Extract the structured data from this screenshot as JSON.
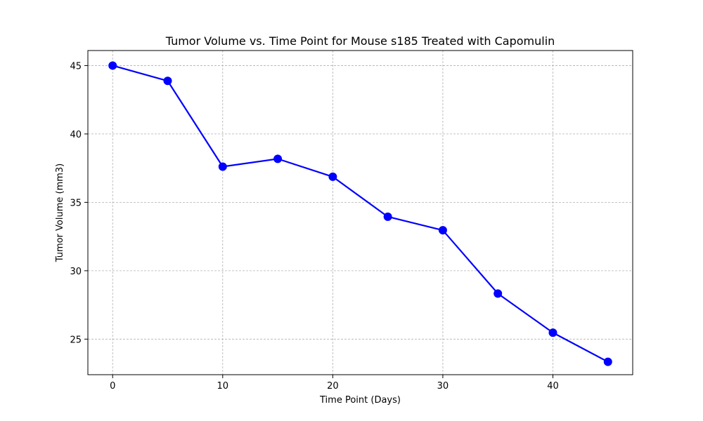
{
  "chart_data": {
    "type": "line",
    "title": "Tumor Volume vs. Time Point for Mouse s185 Treated with Capomulin",
    "xlabel": "Time Point (Days)",
    "ylabel": "Tumor Volume (mm3)",
    "xlim": [
      -2.25,
      47.25
    ],
    "ylim": [
      22.4,
      46.1
    ],
    "x_ticks": [
      0,
      10,
      20,
      30,
      40
    ],
    "y_ticks": [
      25,
      30,
      35,
      40,
      45
    ],
    "grid": true,
    "series": [
      {
        "color": "#0000ff",
        "marker": "circle",
        "x": [
          0,
          5,
          10,
          15,
          20,
          25,
          30,
          35,
          40,
          45
        ],
        "y": [
          45.0,
          43.88,
          37.61,
          38.18,
          36.87,
          33.95,
          32.96,
          28.33,
          25.47,
          23.34
        ]
      }
    ]
  }
}
